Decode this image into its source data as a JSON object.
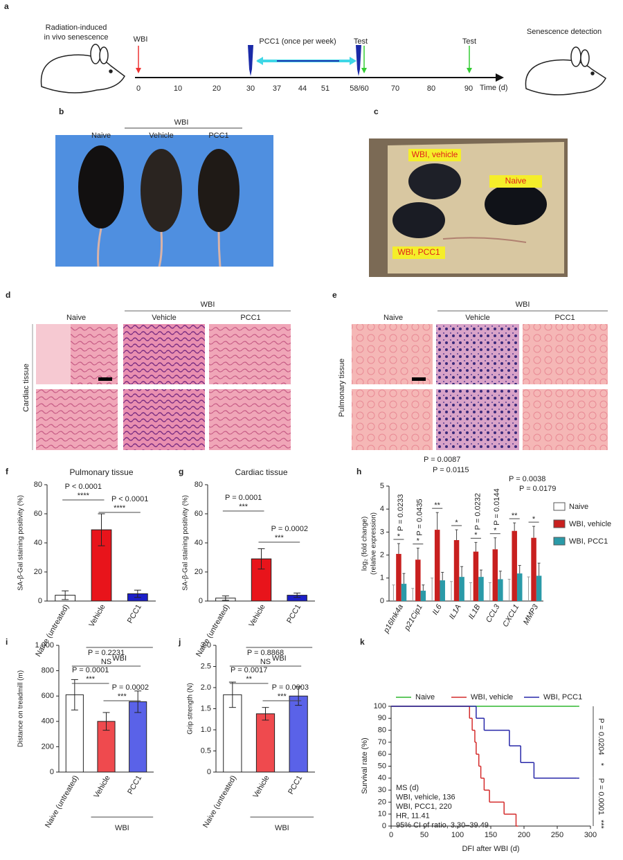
{
  "panel_labels": [
    "a",
    "b",
    "c",
    "d",
    "e",
    "f",
    "g",
    "h",
    "i",
    "j",
    "k"
  ],
  "timeline": {
    "title": [
      "Radiation-induced",
      "in vivo senescence"
    ],
    "events": [
      "WBI",
      "PCC1 (once per week)",
      "Test",
      "Test"
    ],
    "ticks": [
      "0",
      "10",
      "20",
      "30",
      "37",
      "44",
      "51",
      "58/60",
      "70",
      "80",
      "90"
    ],
    "axis_label": "Time (d)",
    "end_label": "Senescence detection"
  },
  "photo_b": {
    "group": "WBI",
    "labels": [
      "Naive",
      "Vehicle",
      "PCC1"
    ]
  },
  "photo_c": {
    "labels": [
      "WBI, vehicle",
      "Naive",
      "WBI, PCC1"
    ]
  },
  "histology_d": {
    "group": "WBI",
    "labels": [
      "Naive",
      "Vehicle",
      "PCC1"
    ],
    "tissue": "Cardiac tissue"
  },
  "histology_e": {
    "group": "WBI",
    "labels": [
      "Naive",
      "Vehicle",
      "PCC1"
    ],
    "tissue": "Pulmonary tissue"
  },
  "chart_data": [
    {
      "type": "bar",
      "title": "Pulmonary tissue",
      "y_label": "SA-β-Gal staining positivity (%)",
      "categories": [
        "Naive (untreated)",
        "Vehicle",
        "PCC1"
      ],
      "values": [
        4,
        49,
        5
      ],
      "errors": [
        3,
        11,
        2.5
      ],
      "colors": [
        "#ffffff",
        "#e8141b",
        "#1c1fc8"
      ],
      "group_label": "WBI",
      "ylim": [
        0,
        80
      ],
      "yticks": [
        0,
        20,
        40,
        60,
        80
      ],
      "comparisons": [
        {
          "p": "P < 0.0001",
          "sig": "****"
        },
        {
          "p": "P < 0.0001",
          "sig": "****"
        }
      ]
    },
    {
      "type": "bar",
      "title": "Cardiac tissue",
      "y_label": "SA-β-Gal staining positivity (%)",
      "categories": [
        "Naive (untreated)",
        "Vehicle",
        "PCC1"
      ],
      "values": [
        2,
        29,
        4
      ],
      "errors": [
        1.5,
        7,
        1.5
      ],
      "colors": [
        "#ffffff",
        "#e8141b",
        "#1c1fc8"
      ],
      "group_label": "WBI",
      "ylim": [
        0,
        80
      ],
      "yticks": [
        0,
        20,
        40,
        60,
        80
      ],
      "comparisons": [
        {
          "p": "P = 0.0001",
          "sig": "***"
        },
        {
          "p": "P = 0.0002",
          "sig": "***"
        }
      ]
    },
    {
      "type": "grouped_bar",
      "y_label": [
        "log₂ (fold change)",
        "(relative expression)"
      ],
      "categories": [
        "p16Ink4a",
        "p21Cip1",
        "IL6",
        "IL1A",
        "IL1B",
        "CCL3",
        "CXCL1",
        "MMP3"
      ],
      "series": [
        {
          "name": "Naive",
          "color": "#ffffff",
          "values": [
            0,
            0,
            0,
            0,
            0,
            0,
            0,
            0
          ],
          "errors": [
            0.7,
            0.55,
            1.0,
            0.85,
            0.8,
            0.8,
            0.95,
            1.05
          ]
        },
        {
          "name": "WBI, vehicle",
          "color": "#c8201f",
          "values": [
            2.05,
            1.8,
            3.1,
            2.65,
            2.15,
            2.25,
            3.05,
            2.75
          ],
          "errors": [
            0.45,
            0.5,
            0.75,
            0.45,
            0.4,
            0.5,
            0.35,
            0.5
          ]
        },
        {
          "name": "WBI, PCC1",
          "color": "#2a9aa8",
          "values": [
            0.75,
            0.45,
            0.9,
            1.05,
            1.05,
            0.95,
            1.2,
            1.1
          ],
          "errors": [
            0.45,
            0.25,
            0.35,
            0.45,
            0.3,
            0.35,
            0.35,
            0.55
          ]
        }
      ],
      "ylim": [
        0,
        5
      ],
      "yticks": [
        0,
        1,
        2,
        3,
        4,
        5
      ],
      "p_values": [
        "P = 0.0233",
        "P = 0.0435",
        "P = 0.0087",
        "P = 0.0115",
        "P = 0.0232",
        "P = 0.0144",
        "P = 0.0038",
        "P = 0.0179"
      ],
      "sig": [
        "*",
        "*",
        "**",
        "*",
        "*",
        "*",
        "**",
        "*"
      ]
    },
    {
      "type": "bar",
      "y_label": "Distance on treadmill (m)",
      "categories": [
        "Naive (untreated)",
        "Vehicle",
        "PCC1"
      ],
      "values": [
        610,
        400,
        555
      ],
      "errors": [
        120,
        70,
        85
      ],
      "colors": [
        "#ffffff",
        "#ef4a4e",
        "#5a62e8"
      ],
      "group_label": "WBI",
      "ylim": [
        0,
        1000
      ],
      "yticks": [
        0,
        200,
        400,
        600,
        800,
        {
          "value": 1000,
          "label": "1,000"
        }
      ],
      "comparisons": [
        {
          "p": "P = 0.2231",
          "sig": "NS"
        },
        {
          "p": "P = 0.0001",
          "sig": "***"
        },
        {
          "p": "P = 0.0002",
          "sig": "***"
        }
      ]
    },
    {
      "type": "bar",
      "y_label": "Grip strength (N)",
      "categories": [
        "Naive (untreated)",
        "Vehicle",
        "PCC1"
      ],
      "values": [
        1.83,
        1.38,
        1.8
      ],
      "errors": [
        0.3,
        0.15,
        0.22
      ],
      "colors": [
        "#ffffff",
        "#ef4a4e",
        "#5a62e8"
      ],
      "group_label": "WBI",
      "ylim": [
        0,
        3
      ],
      "yticks": [
        0,
        0.5,
        {
          "value": 1,
          "label": "1.0"
        },
        1.5,
        {
          "value": 2,
          "label": "2.0"
        },
        2.5,
        {
          "value": 3,
          "label": "3.0"
        }
      ],
      "comparisons": [
        {
          "p": "P = 0.8868",
          "sig": "NS"
        },
        {
          "p": "P = 0.0017",
          "sig": "**"
        },
        {
          "p": "P = 0.0003",
          "sig": "***"
        }
      ]
    },
    {
      "type": "step",
      "x_label": "DFI after WBI (d)",
      "y_label": "Survival rate (%)",
      "series": [
        {
          "name": "Naive",
          "color": "#2db52d",
          "x": [
            0,
            280
          ],
          "values": [
            100,
            100
          ]
        },
        {
          "name": "WBI, vehicle",
          "color": "#d42a2a",
          "x": [
            0,
            118,
            122,
            126,
            128,
            132,
            135,
            140,
            148,
            170,
            188
          ],
          "values": [
            100,
            90,
            80,
            70,
            60,
            50,
            40,
            30,
            20,
            10,
            0
          ]
        },
        {
          "name": "WBI, PCC1",
          "color": "#2626a8",
          "x": [
            0,
            128,
            140,
            178,
            195,
            215,
            280
          ],
          "values": [
            100,
            90,
            80,
            67,
            53,
            40,
            40
          ]
        }
      ],
      "xlim": [
        0,
        300
      ],
      "xticks": [
        0,
        50,
        100,
        150,
        200,
        250,
        300
      ],
      "ylim": [
        0,
        100
      ],
      "yticks": [
        0,
        10,
        20,
        30,
        40,
        50,
        60,
        70,
        80,
        90,
        100
      ],
      "annotations": [
        "MS (d)",
        "WBI, vehicle, 136",
        "WBI, PCC1, 220",
        "HR, 11.41",
        "95% CI of ratio, 3.30–39.49"
      ],
      "comparisons": [
        {
          "p": "P = 0.0204",
          "sig": "*"
        },
        {
          "p": "P = 0.0001",
          "sig": "***"
        }
      ]
    }
  ]
}
